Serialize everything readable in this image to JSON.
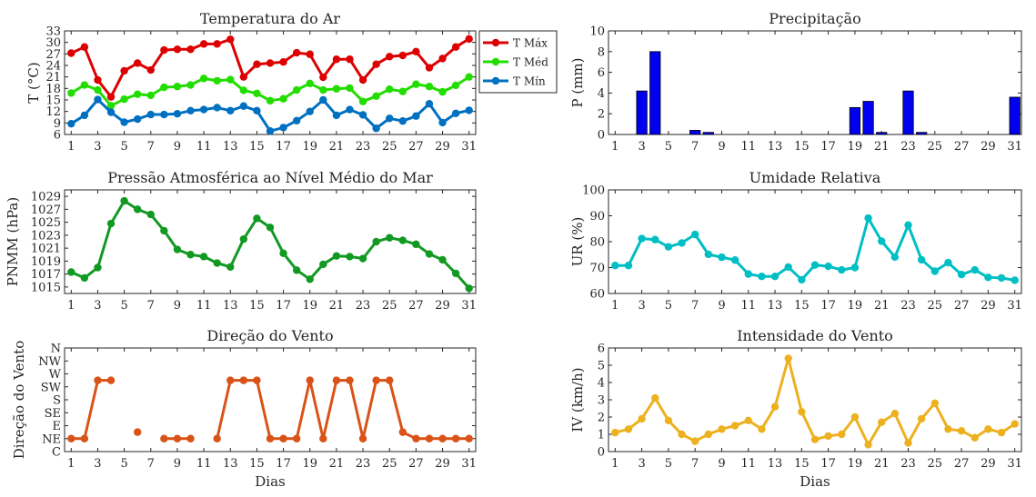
{
  "colors": {
    "tmax": "#dd0000",
    "tmed": "#22dd00",
    "tmin": "#0070c0",
    "precip": "#0000ee",
    "pressure": "#119922",
    "ur": "#00bfc4",
    "wind_dir": "#d95319",
    "wind_int": "#edb120"
  },
  "chart_data": [
    {
      "id": "temp",
      "type": "line",
      "title": "Temperatura do Ar",
      "xlabel": "",
      "ylabel": "T (°C)",
      "xlim": [
        0.5,
        31.5
      ],
      "ylim": [
        6,
        33
      ],
      "xticks": [
        "1",
        "3",
        "5",
        "7",
        "9",
        "11",
        "13",
        "15",
        "17",
        "19",
        "21",
        "23",
        "25",
        "27",
        "29",
        "31"
      ],
      "yticks": [
        "6",
        "9",
        "12",
        "15",
        "18",
        "21",
        "24",
        "27",
        "30",
        "33"
      ],
      "legend": "top-right-outside",
      "series": [
        {
          "key": "tmax",
          "name": "T Máx",
          "values": [
            27.2,
            28.8,
            20.2,
            15.8,
            22.6,
            24.6,
            22.8,
            28,
            28.2,
            28.2,
            29.6,
            29.6,
            30.8,
            21,
            24.3,
            24.6,
            24.9,
            27.3,
            26.9,
            20.9,
            25.6,
            25.6,
            20.2,
            24.3,
            26.3,
            26.6,
            27.6,
            23.4,
            25.8,
            28.8,
            30.9
          ]
        },
        {
          "key": "tmed",
          "name": "T Méd",
          "values": [
            16.8,
            18.9,
            17.6,
            13.5,
            15.2,
            16.5,
            16.2,
            18.3,
            18.5,
            18.9,
            20.6,
            20,
            20.3,
            17.5,
            16.7,
            14.8,
            15.3,
            17.6,
            19.3,
            17.6,
            17.9,
            18.1,
            14.6,
            16,
            17.8,
            17.2,
            19.1,
            18.5,
            17.1,
            18.8,
            21
          ]
        },
        {
          "key": "tmin",
          "name": "T Mín",
          "values": [
            8.8,
            11,
            15.1,
            11.8,
            9.2,
            10,
            11.2,
            11.2,
            11.4,
            12.2,
            12.5,
            13,
            12.2,
            13.4,
            12.2,
            6.9,
            7.8,
            9.6,
            12,
            15,
            11,
            12.5,
            11.1,
            7.6,
            10.2,
            9.5,
            10.8,
            14,
            9.1,
            11.5,
            12.3
          ]
        }
      ]
    },
    {
      "id": "precip",
      "type": "bar",
      "title": "Precipitação",
      "xlabel": "",
      "ylabel": "P (mm)",
      "xlim": [
        0.5,
        31.5
      ],
      "ylim": [
        0,
        10
      ],
      "xticks": [
        "1",
        "3",
        "5",
        "7",
        "9",
        "11",
        "13",
        "15",
        "17",
        "19",
        "21",
        "23",
        "25",
        "27",
        "29",
        "31"
      ],
      "yticks": [
        "0",
        "2",
        "4",
        "6",
        "8",
        "10"
      ],
      "values": [
        0,
        0,
        4.2,
        8,
        0,
        0,
        0.4,
        0.2,
        0,
        0,
        0,
        0,
        0,
        0,
        0,
        0,
        0,
        0,
        2.6,
        3.2,
        0.2,
        0,
        4.2,
        0.2,
        0,
        0,
        0,
        0,
        0,
        0,
        3.6
      ]
    },
    {
      "id": "pressure",
      "type": "line",
      "title": "Pressão Atmosférica ao Nível Médio do Mar",
      "xlabel": "",
      "ylabel": "PNMM (hPa)",
      "xlim": [
        0.5,
        31.5
      ],
      "ylim": [
        1014,
        1030
      ],
      "xticks": [
        "1",
        "3",
        "5",
        "7",
        "9",
        "11",
        "13",
        "15",
        "17",
        "19",
        "21",
        "23",
        "25",
        "27",
        "29",
        "31"
      ],
      "yticks": [
        "1015",
        "1017",
        "1019",
        "1021",
        "1023",
        "1025",
        "1027",
        "1029"
      ],
      "values": [
        1017.3,
        1016.4,
        1018,
        1024.8,
        1028.3,
        1027,
        1026.2,
        1023.7,
        1020.8,
        1020,
        1019.7,
        1018.7,
        1018.1,
        1022.4,
        1025.6,
        1024.2,
        1020.2,
        1017.6,
        1016.2,
        1018.5,
        1019.8,
        1019.7,
        1019.4,
        1022,
        1022.6,
        1022.2,
        1021.6,
        1020.1,
        1019.2,
        1017.1,
        1014.8
      ]
    },
    {
      "id": "ur",
      "type": "line",
      "title": "Umidade Relativa",
      "xlabel": "",
      "ylabel": "UR (%)",
      "xlim": [
        0.5,
        31.5
      ],
      "ylim": [
        60,
        100
      ],
      "xticks": [
        "1",
        "3",
        "5",
        "7",
        "9",
        "11",
        "13",
        "15",
        "17",
        "19",
        "21",
        "23",
        "25",
        "27",
        "29",
        "31"
      ],
      "yticks": [
        "60",
        "70",
        "80",
        "90",
        "100"
      ],
      "values": [
        70.8,
        70.8,
        81.2,
        80.8,
        78,
        79.5,
        82.8,
        75.1,
        74,
        72.9,
        67.5,
        66.6,
        66.6,
        70.2,
        65.3,
        71,
        70.5,
        69.1,
        70,
        89.1,
        80.2,
        74.1,
        86.4,
        73,
        68.6,
        71.9,
        67.3,
        69.1,
        66.2,
        66,
        65.1
      ]
    },
    {
      "id": "wind_dir",
      "type": "line",
      "title": "Direção do Vento",
      "xlabel": "Dias",
      "ylabel": "Direção do Vento",
      "xlim": [
        0.5,
        31.5
      ],
      "ylim": [
        0,
        8
      ],
      "xticks": [
        "1",
        "3",
        "5",
        "7",
        "9",
        "11",
        "13",
        "15",
        "17",
        "19",
        "21",
        "23",
        "25",
        "27",
        "29",
        "31"
      ],
      "ytick_labels": [
        "C",
        "NE",
        "E",
        "SE",
        "S",
        "SW",
        "W",
        "NW",
        "N"
      ],
      "values": [
        1,
        1,
        5.5,
        5.5,
        null,
        1.5,
        null,
        1,
        1,
        1,
        null,
        1,
        5.5,
        5.5,
        5.5,
        1,
        1,
        1,
        5.5,
        1,
        5.5,
        5.5,
        1,
        5.5,
        5.5,
        1.5,
        1,
        1,
        1,
        1,
        1
      ]
    },
    {
      "id": "wind_int",
      "type": "line",
      "title": "Intensidade do Vento",
      "xlabel": "Dias",
      "ylabel": "IV (km/h)",
      "xlim": [
        0.5,
        31.5
      ],
      "ylim": [
        0,
        6
      ],
      "xticks": [
        "1",
        "3",
        "5",
        "7",
        "9",
        "11",
        "13",
        "15",
        "17",
        "19",
        "21",
        "23",
        "25",
        "27",
        "29",
        "31"
      ],
      "yticks": [
        "0",
        "1",
        "2",
        "3",
        "4",
        "5",
        "6"
      ],
      "values": [
        1.1,
        1.3,
        1.9,
        3.1,
        1.8,
        1.0,
        0.6,
        1.0,
        1.3,
        1.5,
        1.8,
        1.3,
        2.6,
        5.4,
        2.3,
        0.7,
        0.9,
        1.0,
        2.0,
        0.4,
        1.7,
        2.2,
        0.5,
        1.9,
        2.8,
        1.3,
        1.2,
        0.8,
        1.3,
        1.1,
        1.6
      ]
    }
  ]
}
